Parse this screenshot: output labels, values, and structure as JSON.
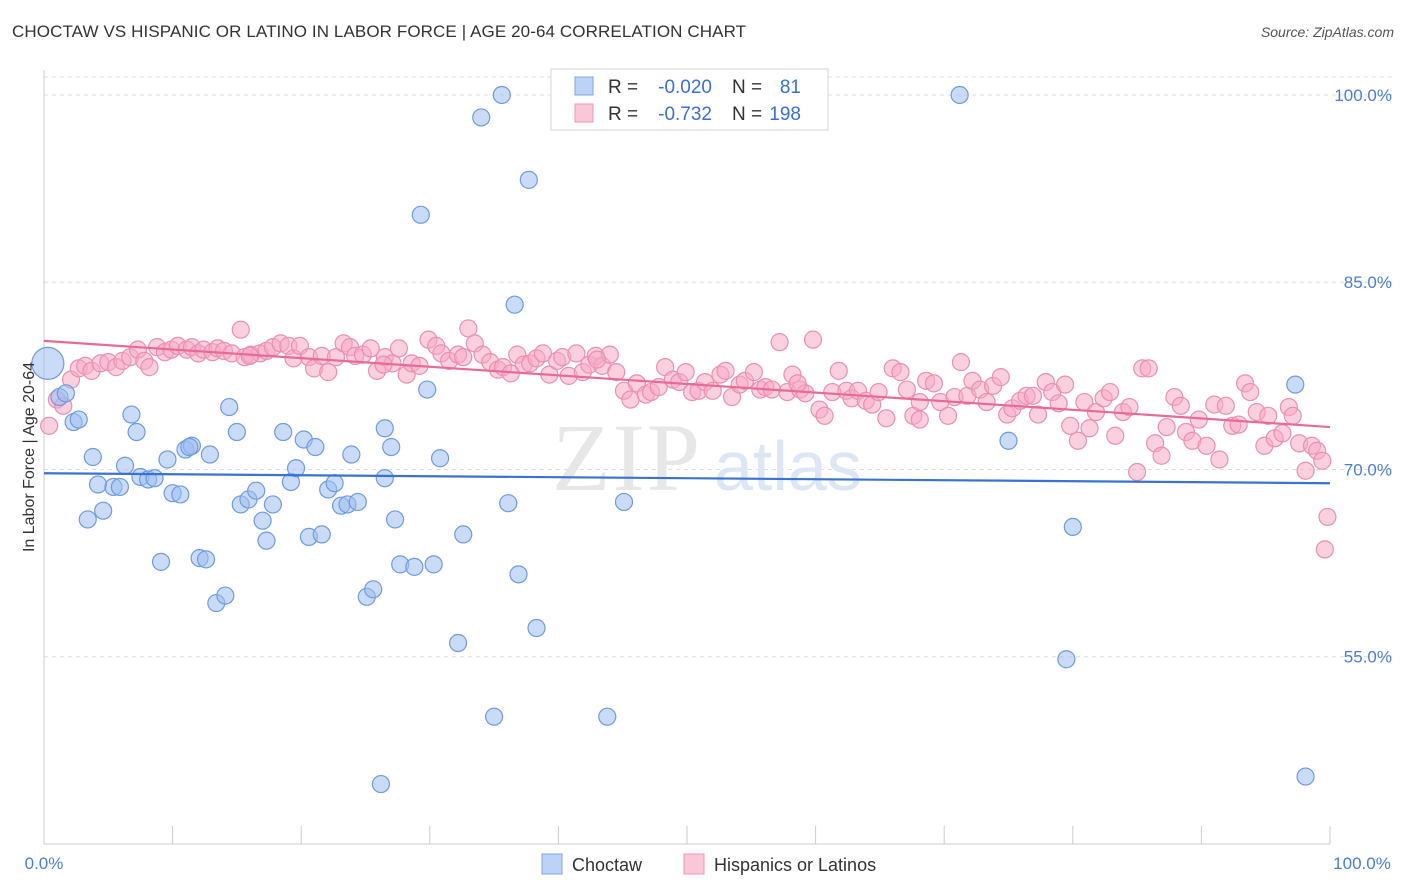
{
  "header": {
    "title": "CHOCTAW VS HISPANIC OR LATINO IN LABOR FORCE | AGE 20-64 CORRELATION CHART",
    "source": "Source: ZipAtlas.com"
  },
  "watermark": {
    "zip": "ZIP",
    "atlas": "atlas"
  },
  "legend": {
    "r_label": "R =",
    "n_label": "N =",
    "rows": [
      {
        "r": "-0.020",
        "n": "81"
      },
      {
        "r": "-0.732",
        "n": "198"
      }
    ]
  },
  "chart_data": {
    "type": "scatter",
    "title": "CHOCTAW VS HISPANIC OR LATINO IN LABOR FORCE | AGE 20-64 CORRELATION CHART",
    "xlabel": "",
    "ylabel": "In Labor Force | Age 20-64",
    "xlim": [
      0,
      100
    ],
    "ylim": [
      40,
      102
    ],
    "x_tick_labels": [
      "0.0%",
      "100.0%"
    ],
    "y_ticks": [
      55,
      70,
      85,
      100
    ],
    "y_tick_labels": [
      "55.0%",
      "70.0%",
      "85.0%",
      "100.0%"
    ],
    "grid": "horizontal dashed",
    "legend_position": "top-center",
    "colors": {
      "choctaw": "#9dbdf0",
      "choctaw_line": "#3a72d4",
      "hispanic": "#f5aac4",
      "hispanic_line": "#e86b95"
    },
    "series": [
      {
        "name": "Choctaw",
        "r": -0.02,
        "n": 81,
        "trend": {
          "x": [
            0,
            100
          ],
          "y": [
            69.7,
            68.9
          ]
        },
        "points": [
          [
            0.3,
            78.5
          ],
          [
            1.2,
            75.8
          ],
          [
            1.7,
            76.1
          ],
          [
            2.3,
            73.8
          ],
          [
            2.7,
            74.0
          ],
          [
            3.4,
            66.0
          ],
          [
            3.8,
            71.0
          ],
          [
            4.2,
            68.8
          ],
          [
            4.6,
            66.7
          ],
          [
            5.4,
            68.6
          ],
          [
            5.9,
            68.6
          ],
          [
            6.3,
            70.3
          ],
          [
            6.8,
            74.4
          ],
          [
            7.2,
            73.0
          ],
          [
            7.5,
            69.4
          ],
          [
            8.1,
            69.2
          ],
          [
            8.6,
            69.3
          ],
          [
            9.1,
            62.6
          ],
          [
            9.6,
            70.8
          ],
          [
            10.0,
            68.1
          ],
          [
            10.6,
            68.0
          ],
          [
            11.0,
            71.6
          ],
          [
            11.5,
            71.9
          ],
          [
            12.1,
            62.9
          ],
          [
            12.6,
            62.8
          ],
          [
            12.9,
            71.2
          ],
          [
            13.4,
            59.3
          ],
          [
            14.1,
            59.9
          ],
          [
            14.4,
            75.0
          ],
          [
            15.0,
            73.0
          ],
          [
            15.3,
            67.2
          ],
          [
            15.9,
            67.6
          ],
          [
            16.5,
            68.3
          ],
          [
            17.0,
            65.9
          ],
          [
            17.3,
            64.3
          ],
          [
            17.8,
            67.2
          ],
          [
            18.6,
            73.0
          ],
          [
            19.2,
            69.0
          ],
          [
            19.6,
            70.1
          ],
          [
            20.2,
            72.4
          ],
          [
            20.6,
            64.6
          ],
          [
            21.1,
            71.8
          ],
          [
            21.6,
            64.8
          ],
          [
            22.1,
            68.4
          ],
          [
            22.6,
            68.9
          ],
          [
            23.1,
            67.1
          ],
          [
            23.6,
            67.2
          ],
          [
            23.9,
            71.2
          ],
          [
            24.4,
            67.4
          ],
          [
            25.1,
            59.8
          ],
          [
            25.6,
            60.4
          ],
          [
            26.5,
            69.3
          ],
          [
            27.0,
            71.8
          ],
          [
            27.3,
            66.0
          ],
          [
            27.7,
            62.4
          ],
          [
            28.8,
            62.2
          ],
          [
            29.3,
            90.4
          ],
          [
            29.8,
            76.4
          ],
          [
            30.3,
            62.4
          ],
          [
            30.8,
            70.9
          ],
          [
            32.2,
            56.1
          ],
          [
            32.6,
            64.8
          ],
          [
            34.0,
            98.2
          ],
          [
            35.0,
            50.2
          ],
          [
            35.6,
            100.0
          ],
          [
            36.1,
            67.3
          ],
          [
            36.6,
            83.2
          ],
          [
            36.9,
            61.6
          ],
          [
            37.7,
            93.2
          ],
          [
            38.3,
            57.3
          ],
          [
            43.8,
            50.2
          ],
          [
            45.1,
            67.4
          ],
          [
            71.2,
            100.0
          ],
          [
            75.0,
            72.3
          ],
          [
            79.5,
            54.8
          ],
          [
            80.0,
            65.4
          ],
          [
            97.3,
            76.8
          ],
          [
            98.1,
            45.4
          ],
          [
            26.5,
            73.3
          ],
          [
            11.3,
            71.8
          ],
          [
            26.2,
            44.8
          ]
        ]
      },
      {
        "name": "Hispanics or Latinos",
        "r": -0.732,
        "n": 198,
        "trend": {
          "x": [
            0,
            100
          ],
          "y": [
            80.3,
            73.4
          ]
        },
        "points": [
          [
            0.4,
            73.5
          ],
          [
            1.0,
            75.6
          ],
          [
            1.5,
            75.1
          ],
          [
            2.1,
            77.2
          ],
          [
            2.7,
            78.1
          ],
          [
            3.2,
            78.3
          ],
          [
            3.7,
            77.9
          ],
          [
            4.4,
            78.5
          ],
          [
            5.0,
            78.6
          ],
          [
            5.6,
            78.2
          ],
          [
            6.1,
            78.7
          ],
          [
            6.7,
            79.0
          ],
          [
            7.3,
            79.6
          ],
          [
            7.8,
            78.7
          ],
          [
            8.2,
            78.2
          ],
          [
            8.8,
            79.8
          ],
          [
            9.4,
            79.4
          ],
          [
            9.9,
            79.6
          ],
          [
            10.4,
            79.9
          ],
          [
            11.1,
            79.6
          ],
          [
            11.5,
            79.8
          ],
          [
            12.0,
            79.3
          ],
          [
            12.4,
            79.6
          ],
          [
            13.1,
            79.4
          ],
          [
            13.5,
            79.7
          ],
          [
            14.0,
            79.5
          ],
          [
            14.6,
            79.3
          ],
          [
            15.3,
            81.2
          ],
          [
            15.6,
            79.0
          ],
          [
            16.1,
            79.2
          ],
          [
            16.8,
            79.3
          ],
          [
            17.3,
            79.5
          ],
          [
            17.8,
            79.8
          ],
          [
            18.4,
            80.1
          ],
          [
            19.0,
            79.9
          ],
          [
            19.4,
            78.9
          ],
          [
            19.9,
            79.9
          ],
          [
            20.6,
            79.0
          ],
          [
            21.0,
            78.1
          ],
          [
            21.6,
            79.1
          ],
          [
            22.1,
            77.8
          ],
          [
            22.7,
            79.0
          ],
          [
            23.3,
            80.1
          ],
          [
            23.8,
            79.8
          ],
          [
            24.2,
            79.1
          ],
          [
            24.8,
            79.2
          ],
          [
            25.4,
            79.7
          ],
          [
            25.9,
            77.9
          ],
          [
            26.5,
            79.0
          ],
          [
            27.1,
            78.5
          ],
          [
            27.6,
            79.7
          ],
          [
            28.2,
            77.6
          ],
          [
            28.6,
            78.5
          ],
          [
            29.2,
            78.3
          ],
          [
            29.9,
            80.4
          ],
          [
            30.5,
            79.9
          ],
          [
            30.9,
            79.3
          ],
          [
            31.5,
            78.7
          ],
          [
            32.2,
            79.2
          ],
          [
            32.6,
            79.0
          ],
          [
            33.0,
            81.3
          ],
          [
            33.5,
            80.1
          ],
          [
            34.1,
            79.2
          ],
          [
            34.7,
            78.6
          ],
          [
            35.3,
            78.0
          ],
          [
            35.7,
            78.2
          ],
          [
            36.3,
            77.7
          ],
          [
            36.8,
            79.2
          ],
          [
            37.3,
            78.4
          ],
          [
            37.8,
            78.5
          ],
          [
            38.3,
            78.9
          ],
          [
            38.8,
            79.3
          ],
          [
            39.3,
            77.6
          ],
          [
            39.9,
            78.7
          ],
          [
            40.3,
            79.0
          ],
          [
            40.8,
            77.5
          ],
          [
            41.4,
            79.3
          ],
          [
            41.9,
            77.8
          ],
          [
            42.4,
            78.4
          ],
          [
            42.9,
            79.1
          ],
          [
            43.4,
            78.3
          ],
          [
            44.0,
            79.2
          ],
          [
            44.5,
            77.8
          ],
          [
            45.1,
            76.3
          ],
          [
            45.6,
            75.6
          ],
          [
            46.1,
            76.9
          ],
          [
            46.8,
            76.0
          ],
          [
            47.2,
            76.2
          ],
          [
            47.8,
            76.6
          ],
          [
            48.3,
            78.2
          ],
          [
            48.9,
            77.2
          ],
          [
            49.4,
            77.0
          ],
          [
            49.9,
            77.8
          ],
          [
            50.4,
            76.2
          ],
          [
            50.9,
            76.3
          ],
          [
            51.4,
            77.0
          ],
          [
            52.0,
            76.3
          ],
          [
            52.6,
            77.6
          ],
          [
            53.0,
            77.9
          ],
          [
            53.5,
            75.8
          ],
          [
            54.1,
            76.8
          ],
          [
            54.5,
            77.1
          ],
          [
            55.2,
            77.8
          ],
          [
            55.7,
            76.4
          ],
          [
            56.1,
            76.6
          ],
          [
            56.6,
            76.4
          ],
          [
            57.2,
            80.2
          ],
          [
            57.8,
            76.2
          ],
          [
            58.2,
            77.6
          ],
          [
            58.8,
            76.4
          ],
          [
            59.2,
            76.1
          ],
          [
            59.8,
            80.4
          ],
          [
            60.3,
            74.8
          ],
          [
            60.7,
            74.3
          ],
          [
            61.3,
            76.2
          ],
          [
            61.8,
            77.9
          ],
          [
            62.4,
            76.3
          ],
          [
            62.8,
            75.7
          ],
          [
            63.3,
            76.3
          ],
          [
            63.9,
            75.5
          ],
          [
            64.4,
            75.2
          ],
          [
            64.9,
            76.2
          ],
          [
            65.5,
            74.1
          ],
          [
            66.0,
            78.1
          ],
          [
            66.6,
            77.8
          ],
          [
            67.1,
            76.4
          ],
          [
            67.6,
            74.3
          ],
          [
            68.1,
            75.4
          ],
          [
            68.6,
            77.1
          ],
          [
            69.2,
            76.9
          ],
          [
            69.7,
            75.4
          ],
          [
            70.3,
            74.3
          ],
          [
            70.8,
            75.8
          ],
          [
            71.3,
            78.6
          ],
          [
            71.8,
            75.9
          ],
          [
            72.2,
            77.1
          ],
          [
            72.8,
            76.4
          ],
          [
            73.3,
            75.4
          ],
          [
            73.8,
            76.7
          ],
          [
            74.4,
            77.4
          ],
          [
            74.9,
            74.4
          ],
          [
            75.3,
            74.9
          ],
          [
            75.9,
            75.5
          ],
          [
            76.4,
            75.9
          ],
          [
            76.9,
            75.9
          ],
          [
            77.3,
            74.4
          ],
          [
            77.9,
            77.0
          ],
          [
            78.4,
            76.2
          ],
          [
            78.9,
            75.3
          ],
          [
            79.4,
            76.8
          ],
          [
            79.8,
            73.5
          ],
          [
            80.4,
            72.3
          ],
          [
            80.9,
            75.4
          ],
          [
            81.3,
            73.3
          ],
          [
            81.8,
            74.6
          ],
          [
            82.4,
            75.7
          ],
          [
            82.9,
            76.2
          ],
          [
            83.3,
            72.7
          ],
          [
            83.9,
            74.6
          ],
          [
            84.4,
            75.0
          ],
          [
            85.0,
            69.8
          ],
          [
            85.4,
            78.1
          ],
          [
            85.9,
            78.1
          ],
          [
            86.4,
            72.1
          ],
          [
            86.9,
            71.1
          ],
          [
            87.3,
            73.4
          ],
          [
            87.9,
            75.8
          ],
          [
            88.4,
            75.1
          ],
          [
            88.8,
            73.0
          ],
          [
            89.3,
            72.3
          ],
          [
            89.8,
            74.0
          ],
          [
            90.4,
            71.9
          ],
          [
            91.0,
            75.2
          ],
          [
            91.4,
            70.8
          ],
          [
            91.9,
            75.1
          ],
          [
            92.4,
            73.5
          ],
          [
            92.9,
            73.6
          ],
          [
            93.4,
            76.9
          ],
          [
            93.8,
            76.2
          ],
          [
            94.3,
            74.6
          ],
          [
            94.9,
            71.9
          ],
          [
            95.2,
            74.3
          ],
          [
            95.7,
            72.5
          ],
          [
            96.3,
            72.9
          ],
          [
            96.8,
            75.0
          ],
          [
            97.1,
            74.3
          ],
          [
            97.6,
            72.1
          ],
          [
            98.1,
            69.9
          ],
          [
            98.6,
            71.9
          ],
          [
            99.0,
            71.5
          ],
          [
            99.4,
            70.7
          ],
          [
            99.8,
            66.2
          ],
          [
            99.6,
            63.6
          ],
          [
            26.4,
            78.4
          ],
          [
            43.0,
            78.8
          ],
          [
            58.6,
            76.9
          ],
          [
            68.1,
            74.0
          ],
          [
            16.0,
            79.1
          ]
        ]
      }
    ]
  },
  "bottom_legend": [
    {
      "label": "Choctaw"
    },
    {
      "label": "Hispanics or Latinos"
    }
  ]
}
